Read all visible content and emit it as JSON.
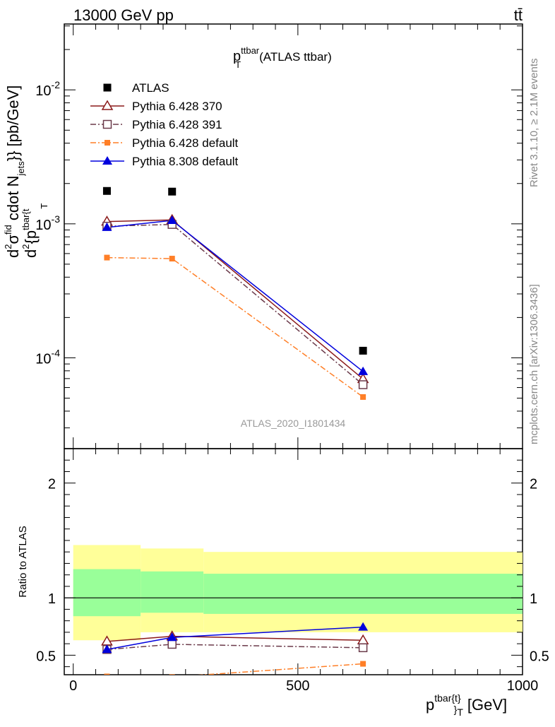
{
  "header": {
    "energy_label": "13000 GeV pp",
    "process_label": "tt̄"
  },
  "plot_title": {
    "main": "p",
    "sup": "ttbar",
    "sub": "T",
    "suffix": "(ATLAS ttbar)"
  },
  "y_axis_label": {
    "parts": [
      "d",
      "2",
      "σ",
      "fid",
      " cdot N",
      "jets",
      "}} [pb/GeV]"
    ],
    "denominator": [
      "d",
      "2",
      "{p",
      "tbar{t",
      "T"
    ]
  },
  "x_axis_label": {
    "base": "p",
    "sup": "tbar{t}",
    "sub": "}",
    "subsub": "T",
    "unit": "[GeV]"
  },
  "ratio_axis_label": "Ratio to ATLAS",
  "side_labels": {
    "rivet": "Rivet 3.1.10, ≥ 2.1M events",
    "mcplots": "mcplots.cern.ch [arXiv:1306.3436]"
  },
  "watermark": "ATLAS_2020_I1801434",
  "colors": {
    "atlas": "#000000",
    "py370": "#8b1a1a",
    "py391": "#6b3a4a",
    "pydefault": "#ff7f27",
    "py8": "#0000dd",
    "band_outer": "#ffff99",
    "band_inner": "#99ff99"
  },
  "chart_data": [
    {
      "type": "scatter",
      "title": "",
      "xlabel": "p_T^{tbar{t}} [GeV]",
      "ylabel": "d^2σ^fid/d^2{p_T^tbar{t}  cdot N_jets}} [pb/GeV]",
      "xlim": [
        -20,
        1000
      ],
      "ylim": [
        2.1e-05,
        0.031
      ],
      "yscale": "log",
      "y_tick_labels": [
        "10^-4",
        "10^-3",
        "10^-2"
      ],
      "x": [
        75,
        220,
        645
      ],
      "series": [
        {
          "name": "ATLAS",
          "values": [
            0.00176,
            0.00174,
            0.000113
          ],
          "marker": "square-filled"
        },
        {
          "name": "Pythia 6.428 370",
          "values": [
            0.00104,
            0.00107,
            6.95e-05
          ],
          "marker": "triangle-open",
          "line": "solid"
        },
        {
          "name": "Pythia 6.428 391",
          "values": [
            0.00096,
            0.00099,
            6.3e-05
          ],
          "marker": "square-open",
          "line": "dashdot"
        },
        {
          "name": "Pythia 6.428 default",
          "values": [
            0.00056,
            0.00055,
            5.1e-05
          ],
          "marker": "square-filled-small",
          "line": "dashdot"
        },
        {
          "name": "Pythia 8.308 default",
          "values": [
            0.00094,
            0.00106,
            7.9e-05
          ],
          "marker": "triangle-filled",
          "line": "solid"
        }
      ],
      "legend_placement": "top-left"
    },
    {
      "type": "line",
      "title": "",
      "ylabel": "Ratio to ATLAS",
      "xlim": [
        -20,
        1000
      ],
      "ylim": [
        0.33,
        2.3
      ],
      "y_tick_labels": [
        "0.5",
        "1",
        "2"
      ],
      "x_tick_labels": [
        "0",
        "500",
        "1000"
      ],
      "x": [
        75,
        220,
        645
      ],
      "bins": [
        [
          0,
          150
        ],
        [
          150,
          290
        ],
        [
          290,
          1000
        ]
      ],
      "uncertainty_band_outer": {
        "low": [
          0.63,
          0.7,
          0.7
        ],
        "high": [
          1.46,
          1.43,
          1.4
        ]
      },
      "uncertainty_band_inner": {
        "low": [
          0.84,
          0.87,
          0.86
        ],
        "high": [
          1.25,
          1.23,
          1.21
        ]
      },
      "series": [
        {
          "name": "Pythia 6.428 370",
          "values": [
            0.62,
            0.665,
            0.63
          ]
        },
        {
          "name": "Pythia 6.428 391",
          "values": [
            0.55,
            0.595,
            0.565
          ]
        },
        {
          "name": "Pythia 6.428 default",
          "values": [
            0.315,
            0.31,
            0.425
          ]
        },
        {
          "name": "Pythia 8.308 default",
          "values": [
            0.55,
            0.655,
            0.745
          ]
        }
      ]
    }
  ]
}
